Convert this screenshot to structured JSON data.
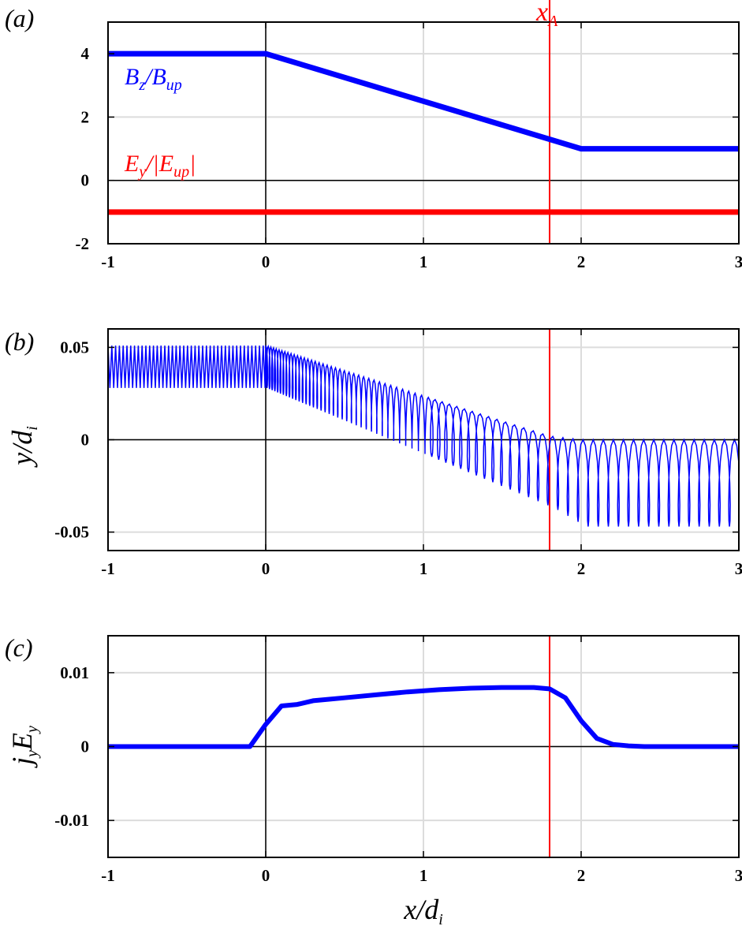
{
  "colors": {
    "blue": "#0000ff",
    "red": "#ff0000",
    "grid": "#dcdcdc",
    "axis": "#000000"
  },
  "chart_data": [
    {
      "panel_label": "(a)",
      "type": "line",
      "xlim": [
        -1,
        3
      ],
      "ylim": [
        -2,
        5
      ],
      "xticks": [
        "-1",
        "0",
        "1",
        "2",
        "3"
      ],
      "yticks": [
        "-2",
        "0",
        "2",
        "4"
      ],
      "grid": true,
      "series": [
        {
          "name": "B_z/B_up",
          "color": "#0000ff",
          "x": [
            -1,
            0,
            2,
            3
          ],
          "y": [
            4,
            4,
            1,
            1
          ]
        },
        {
          "name": "E_y/|E_up|",
          "color": "#ff0000",
          "x": [
            -1,
            3
          ],
          "y": [
            -1,
            -1
          ]
        }
      ],
      "annotations": [
        {
          "label": "x_A",
          "type": "vline",
          "x": 1.8,
          "color": "#ff0000"
        }
      ]
    },
    {
      "panel_label": "(b)",
      "type": "line",
      "ylabel": "y/d_i",
      "xlim": [
        -1,
        3
      ],
      "ylim": [
        -0.06,
        0.06
      ],
      "xticks": [
        "-1",
        "0",
        "1",
        "2",
        "3"
      ],
      "yticks": [
        "-0.05",
        "0",
        "0.05"
      ],
      "grid": true,
      "description_points": {
        "band_region": {
          "x": [
            -1,
            0
          ],
          "y_min": 0.028,
          "y_max": 0.051
        },
        "orbit_at_x0": {
          "y_min": 0.028,
          "y_max": 0.051
        },
        "orbit_at_x1_8": {
          "y_min": -0.037,
          "y_max": 0.002
        },
        "orbit_at_x2": {
          "y_min": -0.047,
          "y_max": 0.0
        },
        "cycloid_period_x": 0.064
      },
      "series": [
        {
          "name": "",
          "color": "#0000ff"
        }
      ],
      "annotations": [
        {
          "type": "vline",
          "x": 1.8,
          "color": "#ff0000"
        }
      ]
    },
    {
      "panel_label": "(c)",
      "type": "line",
      "xlabel": "x/d_i",
      "ylabel": "j_y E_y",
      "xlim": [
        -1,
        3
      ],
      "ylim": [
        -0.015,
        0.015
      ],
      "xticks": [
        "-1",
        "0",
        "1",
        "2",
        "3"
      ],
      "yticks": [
        "-0.01",
        "0",
        "0.01"
      ],
      "grid": true,
      "series": [
        {
          "name": "",
          "color": "#0000ff",
          "x": [
            -1,
            -0.1,
            0,
            0.1,
            0.2,
            0.3,
            0.5,
            0.7,
            0.9,
            1.1,
            1.3,
            1.5,
            1.7,
            1.8,
            1.9,
            2.0,
            2.1,
            2.2,
            2.3,
            2.4,
            3
          ],
          "y": [
            0,
            0,
            0.003,
            0.0055,
            0.0057,
            0.0062,
            0.0066,
            0.007,
            0.0074,
            0.0077,
            0.0079,
            0.008,
            0.008,
            0.0078,
            0.0066,
            0.0035,
            0.0011,
            0.0003,
            0.0001,
            0,
            0
          ]
        }
      ],
      "annotations": [
        {
          "type": "vline",
          "x": 1.8,
          "color": "#ff0000"
        }
      ]
    }
  ]
}
